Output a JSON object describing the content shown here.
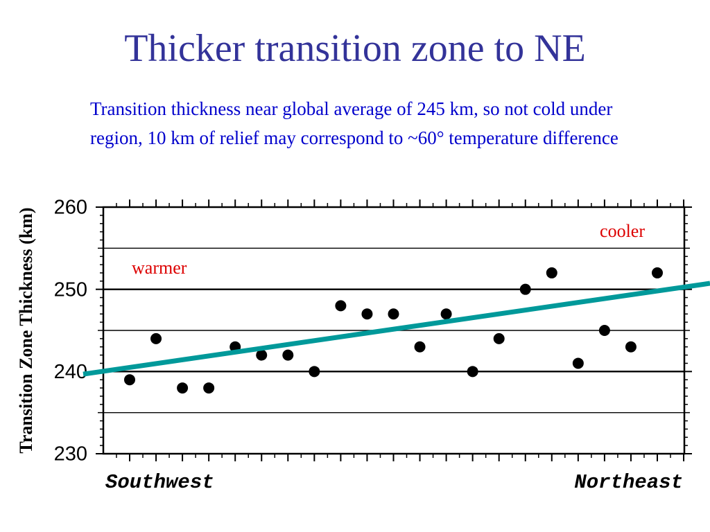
{
  "slide": {
    "title": "Thicker transition zone to NE",
    "subtitle": "Transition thickness near global average of 245 km, so not cold under region, 10 km of relief may correspond to ~60° temperature difference"
  },
  "chart_data": {
    "type": "scatter",
    "ylabel": "Transition Zone Thickness (km)",
    "x_left_label": "Southwest",
    "x_right_label": "Northeast",
    "ylim": [
      230,
      260
    ],
    "yticks": [
      230,
      240,
      250,
      260
    ],
    "grid_lines": [
      235,
      240,
      245,
      250,
      255
    ],
    "grid": true,
    "annotations": {
      "warmer": "warmer",
      "cooler": "cooler"
    },
    "point_color": "#000000",
    "trend_color": "#00999a",
    "annotation_color": "#dd0000",
    "y": [
      239,
      244,
      238,
      238,
      243,
      242,
      242,
      240,
      248,
      247,
      247,
      243,
      247,
      240,
      244,
      250,
      252,
      241,
      245,
      243,
      252
    ],
    "trend": {
      "start": 240.5,
      "end": 249.8
    }
  }
}
